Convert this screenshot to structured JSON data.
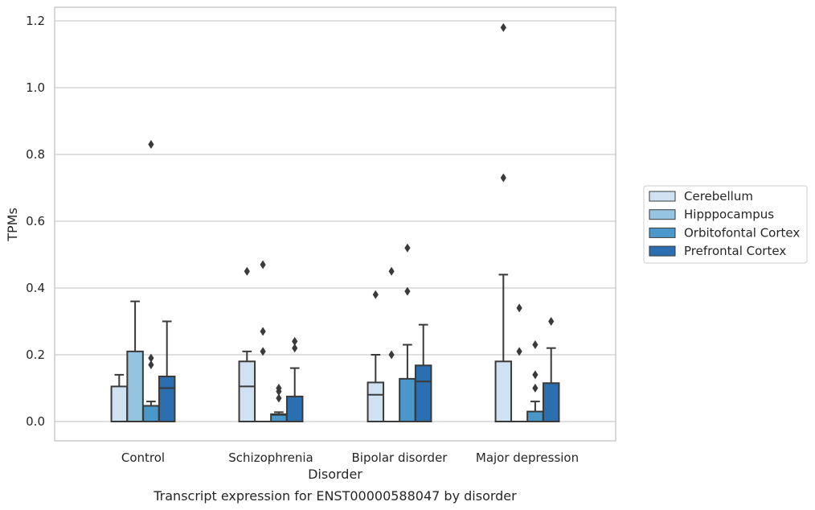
{
  "chart_data": {
    "type": "box",
    "title": "",
    "caption": "Transcript expression for ENST00000588047 by disorder",
    "xlabel": "Disorder",
    "ylabel": "TPMs",
    "ylim": [
      -0.055,
      1.24
    ],
    "yticks": [
      "0.0",
      "0.2",
      "0.4",
      "0.6",
      "0.8",
      "1.0",
      "1.2"
    ],
    "categories": [
      "Control",
      "Schizophrenia",
      "Bipolar disorder",
      "Major depression"
    ],
    "grid": "horizontal",
    "legend_position": "right",
    "series": [
      {
        "name": "Cerebellum",
        "color": "#d0e1f2",
        "boxes": [
          {
            "q1": 0.0,
            "median": 0.0,
            "q3": 0.105,
            "whisker_low": 0.0,
            "whisker_high": 0.14,
            "outliers": []
          },
          {
            "q1": 0.0,
            "median": 0.105,
            "q3": 0.18,
            "whisker_low": 0.0,
            "whisker_high": 0.21,
            "outliers": [
              0.45
            ]
          },
          {
            "q1": 0.0,
            "median": 0.08,
            "q3": 0.117,
            "whisker_low": 0.0,
            "whisker_high": 0.2,
            "outliers": [
              0.38
            ]
          },
          {
            "q1": 0.0,
            "median": 0.0,
            "q3": 0.18,
            "whisker_low": 0.0,
            "whisker_high": 0.44,
            "outliers": [
              0.73,
              1.18
            ]
          }
        ]
      },
      {
        "name": "Hipppocampus",
        "color": "#94c4df",
        "boxes": [
          {
            "q1": 0.0,
            "median": 0.0,
            "q3": 0.21,
            "whisker_low": 0.0,
            "whisker_high": 0.36,
            "outliers": []
          },
          {
            "q1": 0.0,
            "median": 0.0,
            "q3": 0.0,
            "whisker_low": 0.0,
            "whisker_high": 0.0,
            "outliers": [
              0.21,
              0.27,
              0.47
            ]
          },
          {
            "q1": 0.0,
            "median": 0.0,
            "q3": 0.0,
            "whisker_low": 0.0,
            "whisker_high": 0.0,
            "outliers": [
              0.2,
              0.45
            ]
          },
          {
            "q1": 0.0,
            "median": 0.0,
            "q3": 0.0,
            "whisker_low": 0.0,
            "whisker_high": 0.0,
            "outliers": [
              0.21,
              0.34
            ]
          }
        ]
      },
      {
        "name": "Orbitofontal Cortex",
        "color": "#4a98c9",
        "boxes": [
          {
            "q1": 0.0,
            "median": 0.0,
            "q3": 0.047,
            "whisker_low": 0.0,
            "whisker_high": 0.06,
            "outliers": [
              0.17,
              0.19,
              0.83
            ]
          },
          {
            "q1": 0.0,
            "median": 0.02,
            "q3": 0.022,
            "whisker_low": 0.0,
            "whisker_high": 0.028,
            "outliers": [
              0.07,
              0.09,
              0.1
            ]
          },
          {
            "q1": 0.0,
            "median": 0.0,
            "q3": 0.128,
            "whisker_low": 0.0,
            "whisker_high": 0.23,
            "outliers": [
              0.39,
              0.52
            ]
          },
          {
            "q1": 0.0,
            "median": 0.0,
            "q3": 0.03,
            "whisker_low": 0.0,
            "whisker_high": 0.06,
            "outliers": [
              0.1,
              0.14,
              0.23
            ]
          }
        ]
      },
      {
        "name": "Prefrontal Cortex",
        "color": "#2b6fb0",
        "boxes": [
          {
            "q1": 0.0,
            "median": 0.1,
            "q3": 0.135,
            "whisker_low": 0.0,
            "whisker_high": 0.3,
            "outliers": []
          },
          {
            "q1": 0.0,
            "median": 0.0,
            "q3": 0.075,
            "whisker_low": 0.0,
            "whisker_high": 0.16,
            "outliers": [
              0.22,
              0.24
            ]
          },
          {
            "q1": 0.0,
            "median": 0.12,
            "q3": 0.168,
            "whisker_low": 0.0,
            "whisker_high": 0.29,
            "outliers": []
          },
          {
            "q1": 0.0,
            "median": 0.0,
            "q3": 0.115,
            "whisker_low": 0.0,
            "whisker_high": 0.22,
            "outliers": [
              0.3
            ]
          }
        ]
      }
    ]
  }
}
